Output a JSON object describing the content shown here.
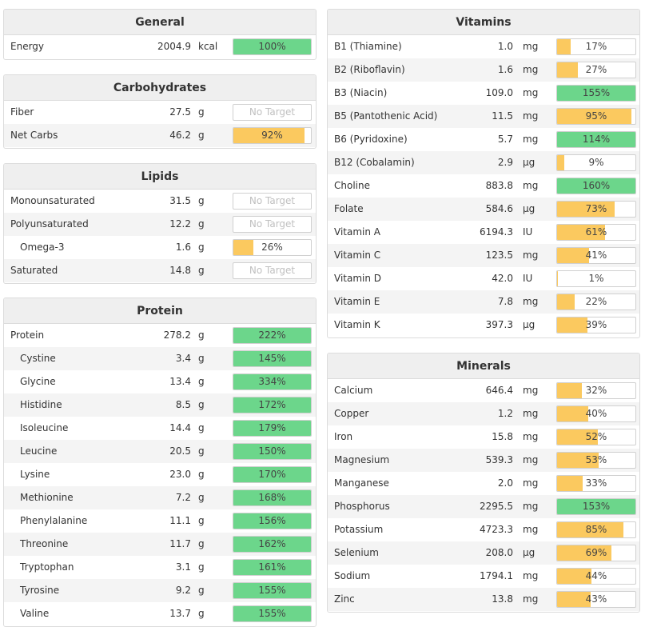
{
  "colors": {
    "green": "#6cd68b",
    "yellow": "#fbc95f"
  },
  "general": {
    "title": "General",
    "rows": [
      {
        "name": "Energy",
        "amount": "2004.9",
        "unit": "kcal",
        "pct": "100%",
        "fill": 1.0,
        "color": "green"
      }
    ]
  },
  "carbs": {
    "title": "Carbohydrates",
    "rows": [
      {
        "name": "Fiber",
        "amount": "27.5",
        "unit": "g",
        "pct": "No Target",
        "fill": 0,
        "color": "none"
      },
      {
        "name": "Net Carbs",
        "amount": "46.2",
        "unit": "g",
        "pct": "92%",
        "fill": 0.92,
        "color": "yellow"
      }
    ]
  },
  "lipids": {
    "title": "Lipids",
    "rows": [
      {
        "name": "Monounsaturated",
        "amount": "31.5",
        "unit": "g",
        "pct": "No Target",
        "fill": 0,
        "color": "none"
      },
      {
        "name": "Polyunsaturated",
        "amount": "12.2",
        "unit": "g",
        "pct": "No Target",
        "fill": 0,
        "color": "none"
      },
      {
        "name": "Omega-3",
        "amount": "1.6",
        "unit": "g",
        "pct": "26%",
        "fill": 0.26,
        "color": "yellow",
        "indent": true
      },
      {
        "name": "Saturated",
        "amount": "14.8",
        "unit": "g",
        "pct": "No Target",
        "fill": 0,
        "color": "none"
      }
    ]
  },
  "protein": {
    "title": "Protein",
    "rows": [
      {
        "name": "Protein",
        "amount": "278.2",
        "unit": "g",
        "pct": "222%",
        "fill": 1.0,
        "color": "green"
      },
      {
        "name": "Cystine",
        "amount": "3.4",
        "unit": "g",
        "pct": "145%",
        "fill": 1.0,
        "color": "green",
        "indent": true
      },
      {
        "name": "Glycine",
        "amount": "13.4",
        "unit": "g",
        "pct": "334%",
        "fill": 1.0,
        "color": "green",
        "indent": true
      },
      {
        "name": "Histidine",
        "amount": "8.5",
        "unit": "g",
        "pct": "172%",
        "fill": 1.0,
        "color": "green",
        "indent": true
      },
      {
        "name": "Isoleucine",
        "amount": "14.4",
        "unit": "g",
        "pct": "179%",
        "fill": 1.0,
        "color": "green",
        "indent": true
      },
      {
        "name": "Leucine",
        "amount": "20.5",
        "unit": "g",
        "pct": "150%",
        "fill": 1.0,
        "color": "green",
        "indent": true
      },
      {
        "name": "Lysine",
        "amount": "23.0",
        "unit": "g",
        "pct": "170%",
        "fill": 1.0,
        "color": "green",
        "indent": true
      },
      {
        "name": "Methionine",
        "amount": "7.2",
        "unit": "g",
        "pct": "168%",
        "fill": 1.0,
        "color": "green",
        "indent": true
      },
      {
        "name": "Phenylalanine",
        "amount": "11.1",
        "unit": "g",
        "pct": "156%",
        "fill": 1.0,
        "color": "green",
        "indent": true
      },
      {
        "name": "Threonine",
        "amount": "11.7",
        "unit": "g",
        "pct": "162%",
        "fill": 1.0,
        "color": "green",
        "indent": true
      },
      {
        "name": "Tryptophan",
        "amount": "3.1",
        "unit": "g",
        "pct": "161%",
        "fill": 1.0,
        "color": "green",
        "indent": true
      },
      {
        "name": "Tyrosine",
        "amount": "9.2",
        "unit": "g",
        "pct": "155%",
        "fill": 1.0,
        "color": "green",
        "indent": true
      },
      {
        "name": "Valine",
        "amount": "13.7",
        "unit": "g",
        "pct": "155%",
        "fill": 1.0,
        "color": "green",
        "indent": true
      }
    ]
  },
  "vitamins": {
    "title": "Vitamins",
    "rows": [
      {
        "name": "B1 (Thiamine)",
        "amount": "1.0",
        "unit": "mg",
        "pct": "17%",
        "fill": 0.17,
        "color": "yellow"
      },
      {
        "name": "B2 (Riboflavin)",
        "amount": "1.6",
        "unit": "mg",
        "pct": "27%",
        "fill": 0.27,
        "color": "yellow"
      },
      {
        "name": "B3 (Niacin)",
        "amount": "109.0",
        "unit": "mg",
        "pct": "155%",
        "fill": 1.0,
        "color": "green"
      },
      {
        "name": "B5 (Pantothenic Acid)",
        "amount": "11.5",
        "unit": "mg",
        "pct": "95%",
        "fill": 0.95,
        "color": "yellow"
      },
      {
        "name": "B6 (Pyridoxine)",
        "amount": "5.7",
        "unit": "mg",
        "pct": "114%",
        "fill": 1.0,
        "color": "green"
      },
      {
        "name": "B12 (Cobalamin)",
        "amount": "2.9",
        "unit": "µg",
        "pct": "9%",
        "fill": 0.09,
        "color": "yellow"
      },
      {
        "name": "Choline",
        "amount": "883.8",
        "unit": "mg",
        "pct": "160%",
        "fill": 1.0,
        "color": "green"
      },
      {
        "name": "Folate",
        "amount": "584.6",
        "unit": "µg",
        "pct": "73%",
        "fill": 0.73,
        "color": "yellow"
      },
      {
        "name": "Vitamin A",
        "amount": "6194.3",
        "unit": "IU",
        "pct": "61%",
        "fill": 0.61,
        "color": "yellow"
      },
      {
        "name": "Vitamin C",
        "amount": "123.5",
        "unit": "mg",
        "pct": "41%",
        "fill": 0.41,
        "color": "yellow"
      },
      {
        "name": "Vitamin D",
        "amount": "42.0",
        "unit": "IU",
        "pct": "1%",
        "fill": 0.01,
        "color": "yellow"
      },
      {
        "name": "Vitamin E",
        "amount": "7.8",
        "unit": "mg",
        "pct": "22%",
        "fill": 0.22,
        "color": "yellow"
      },
      {
        "name": "Vitamin K",
        "amount": "397.3",
        "unit": "µg",
        "pct": "39%",
        "fill": 0.39,
        "color": "yellow"
      }
    ]
  },
  "minerals": {
    "title": "Minerals",
    "rows": [
      {
        "name": "Calcium",
        "amount": "646.4",
        "unit": "mg",
        "pct": "32%",
        "fill": 0.32,
        "color": "yellow"
      },
      {
        "name": "Copper",
        "amount": "1.2",
        "unit": "mg",
        "pct": "40%",
        "fill": 0.4,
        "color": "yellow"
      },
      {
        "name": "Iron",
        "amount": "15.8",
        "unit": "mg",
        "pct": "52%",
        "fill": 0.52,
        "color": "yellow"
      },
      {
        "name": "Magnesium",
        "amount": "539.3",
        "unit": "mg",
        "pct": "53%",
        "fill": 0.53,
        "color": "yellow"
      },
      {
        "name": "Manganese",
        "amount": "2.0",
        "unit": "mg",
        "pct": "33%",
        "fill": 0.33,
        "color": "yellow"
      },
      {
        "name": "Phosphorus",
        "amount": "2295.5",
        "unit": "mg",
        "pct": "153%",
        "fill": 1.0,
        "color": "green"
      },
      {
        "name": "Potassium",
        "amount": "4723.3",
        "unit": "mg",
        "pct": "85%",
        "fill": 0.85,
        "color": "yellow"
      },
      {
        "name": "Selenium",
        "amount": "208.0",
        "unit": "µg",
        "pct": "69%",
        "fill": 0.69,
        "color": "yellow"
      },
      {
        "name": "Sodium",
        "amount": "1794.1",
        "unit": "mg",
        "pct": "44%",
        "fill": 0.44,
        "color": "yellow"
      },
      {
        "name": "Zinc",
        "amount": "13.8",
        "unit": "mg",
        "pct": "43%",
        "fill": 0.43,
        "color": "yellow"
      }
    ]
  }
}
